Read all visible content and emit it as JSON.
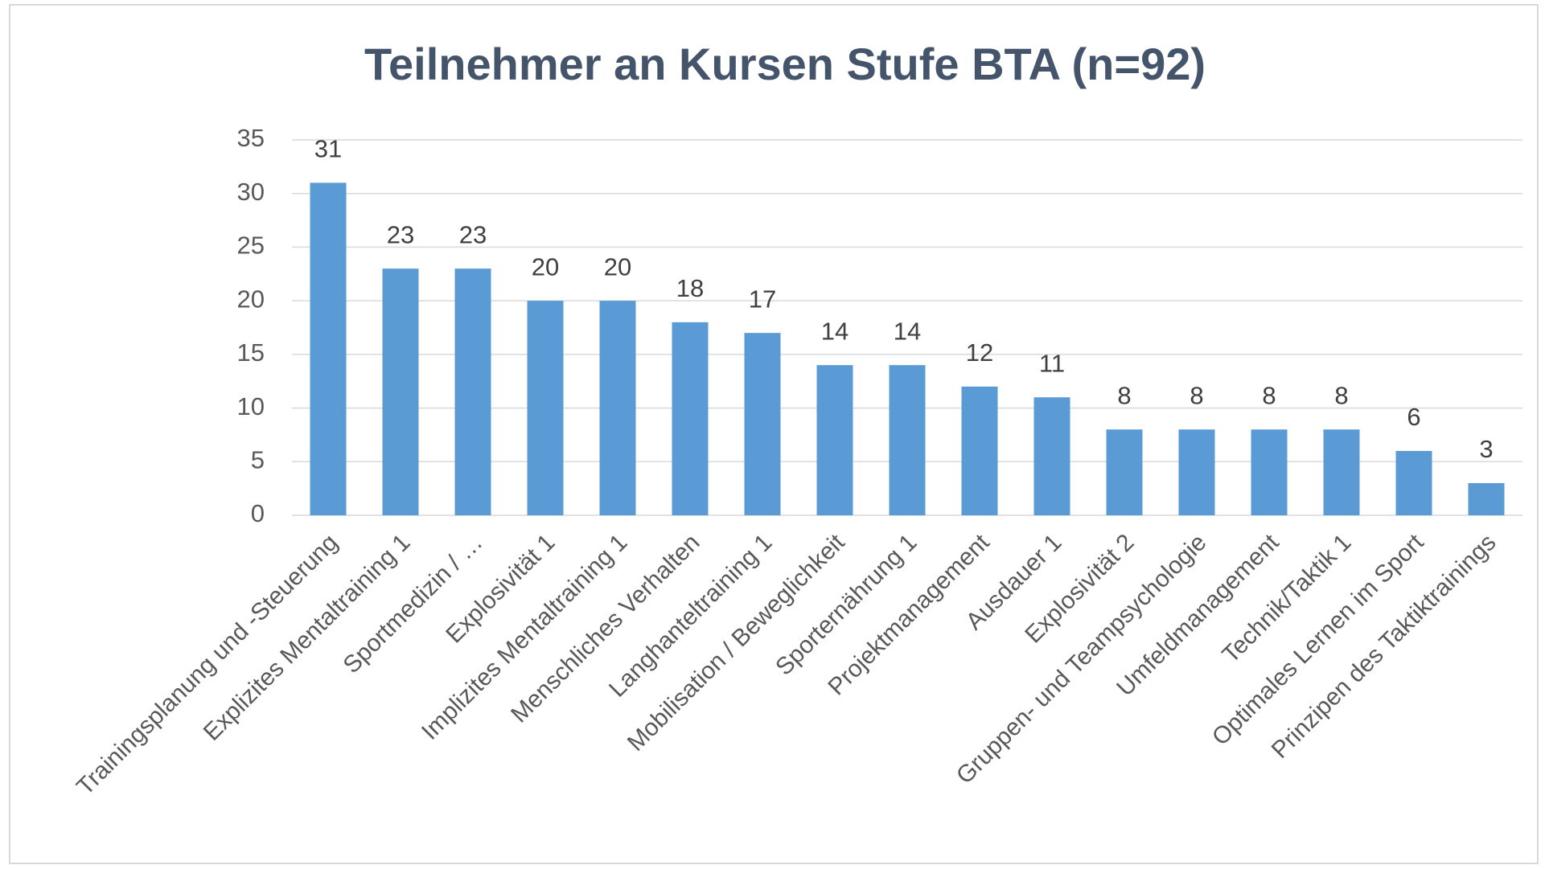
{
  "chart_data": {
    "type": "bar",
    "title": "Teilnehmer an Kursen Stufe BTA (n=92)",
    "categories": [
      "Trainingsplanung und -Steuerung",
      "Explizites Mentaltraining 1",
      "Sportmedizin / …",
      "Explosivität 1",
      "Implizites Mentaltraining 1",
      "Menschliches Verhalten",
      "Langhanteltraining 1",
      "Mobilisation / Beweglichkeit",
      "Sporternährung 1",
      "Projektmanagement",
      "Ausdauer 1",
      "Explosivität 2",
      "Gruppen- und Teampsychologie",
      "Umfeldmanagement",
      "Technik/Taktik 1",
      "Optimales Lernen im Sport",
      "Prinzipen des Taktiktrainings"
    ],
    "values": [
      31,
      23,
      23,
      20,
      20,
      18,
      17,
      14,
      14,
      12,
      11,
      8,
      8,
      8,
      8,
      6,
      3
    ],
    "color": "#5b9bd5",
    "ylim": [
      0,
      35
    ],
    "yticks": [
      0,
      5,
      10,
      15,
      20,
      25,
      30,
      35
    ],
    "grid": true
  }
}
